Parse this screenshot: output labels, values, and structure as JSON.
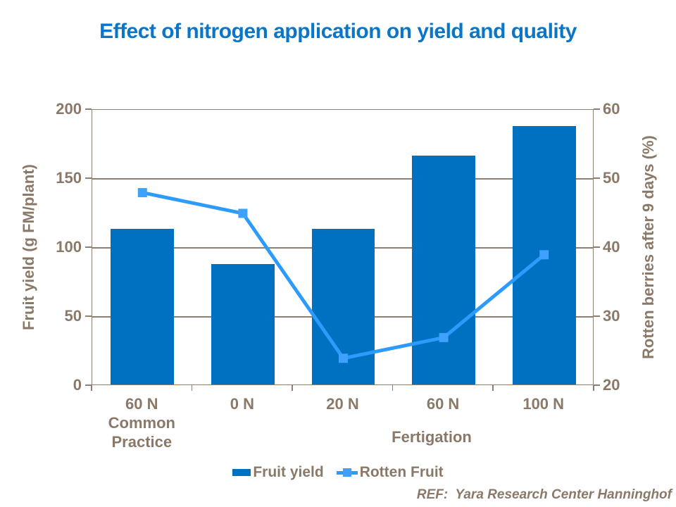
{
  "title": "Effect of nitrogen application on yield and quality",
  "footer": "REF:  Yara Research Center Hanninghof",
  "group_label": "Fertigation",
  "legend": {
    "items": [
      {
        "label": "Fruit yield",
        "swatch": "bar-swatch"
      },
      {
        "label": "Rotten Fruit",
        "swatch": "line-marker-swatch"
      }
    ]
  },
  "colors": {
    "title_blue": "#0B76C8",
    "bar_blue": "#0070C0",
    "line_blue": "#2C9BFB",
    "marker_blue": "#3DA1FD",
    "text_brown": "#8A7968",
    "axis_brown": "#8E8070"
  },
  "chart_data": {
    "type": "bar",
    "subtype": "combo bar + line, dual y-axis",
    "categories": [
      "60 N Common Practice",
      "0 N",
      "20 N",
      "60 N",
      "100 N"
    ],
    "category_display_lines": [
      [
        "60 N",
        "Common",
        "Practice"
      ],
      [
        "0 N"
      ],
      [
        "20 N"
      ],
      [
        "60 N"
      ],
      [
        "100 N"
      ]
    ],
    "series": [
      {
        "name": "Fruit yield",
        "type": "bar",
        "axis": "left",
        "values": [
          113,
          87,
          113,
          166,
          187
        ]
      },
      {
        "name": "Rotten Fruit",
        "type": "line",
        "axis": "right",
        "values": [
          48,
          45,
          24,
          27,
          39
        ]
      }
    ],
    "left_axis": {
      "label": "Fruit yield (g FM/plant)",
      "ticks": [
        200,
        150,
        100,
        50,
        0
      ],
      "min": 0,
      "max": 200
    },
    "right_axis": {
      "label": "Rotten berries after 9 days (%)",
      "ticks": [
        60,
        50,
        40,
        30,
        20
      ],
      "min": 20,
      "max": 60
    },
    "x_group_label": "Fertigation",
    "grid": true,
    "legend_position": "bottom"
  }
}
